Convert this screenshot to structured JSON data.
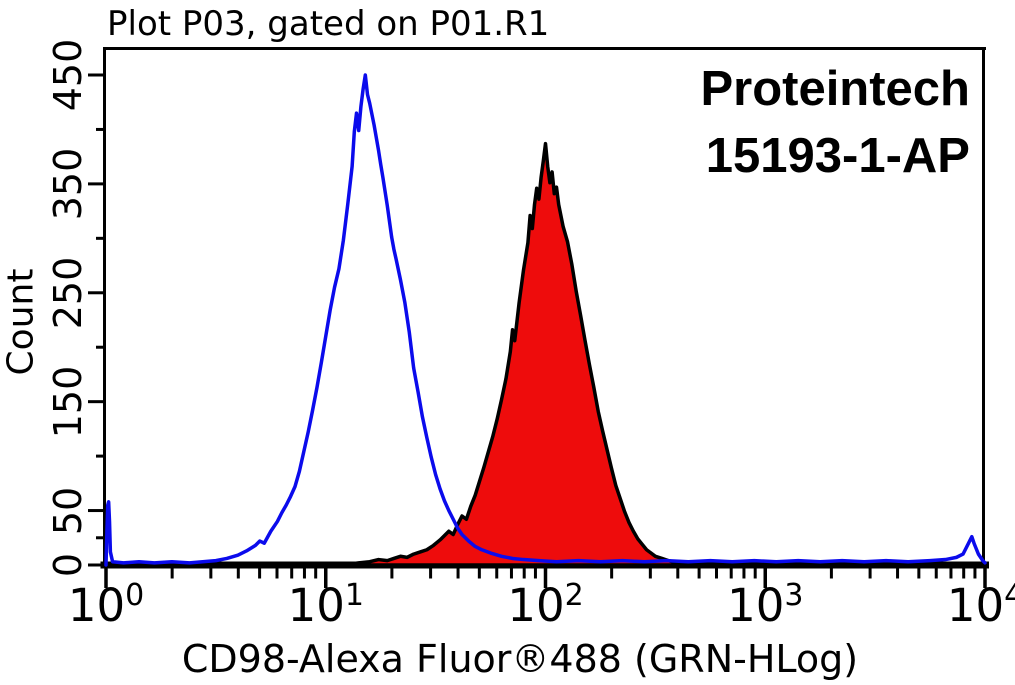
{
  "plot": {
    "title": "Plot P03, gated on P01.R1",
    "watermark_line1": "Proteintech",
    "watermark_line2": "15193-1-AP"
  },
  "colors": {
    "background": "#ffffff",
    "frame": "#000000",
    "text": "#000000",
    "control_line": "#0b0bec",
    "stained_fill": "#ee0c0c",
    "stained_outline": "#000000"
  },
  "chart_data": {
    "type": "area",
    "subtype": "flow-cytometry-overlay-histogram",
    "title": "Plot P03, gated on P01.R1",
    "annotation": "Proteintech 15193-1-AP",
    "xlabel": "CD98-Alexa Fluor®488 (GRN-HLog)",
    "ylabel": "Count",
    "x_scale": "log10",
    "xlim": [
      1,
      10000
    ],
    "xlim_log": [
      0,
      4
    ],
    "ylim": [
      0,
      475
    ],
    "grid": false,
    "legend": "none",
    "x_ticks": [
      {
        "value": 1,
        "base": "10",
        "exp": "0"
      },
      {
        "value": 10,
        "base": "10",
        "exp": "1"
      },
      {
        "value": 100,
        "base": "10",
        "exp": "2"
      },
      {
        "value": 1000,
        "base": "10",
        "exp": "3"
      },
      {
        "value": 10000,
        "base": "10",
        "exp": "4"
      }
    ],
    "y_labeled_ticks": [
      0,
      50,
      150,
      250,
      350,
      450
    ],
    "y_minor_ticks": [
      25,
      100,
      200,
      300,
      400
    ],
    "series": [
      {
        "name": "stained CD98-Alexa Fluor 488 (red filled histogram)",
        "style": "filled",
        "fill": "#ee0c0c",
        "stroke": "#000000",
        "peak_x": 100,
        "peak_count": 387,
        "points_logx_count": [
          [
            1.08,
            0
          ],
          [
            1.15,
            2
          ],
          [
            1.2,
            3
          ],
          [
            1.24,
            5
          ],
          [
            1.28,
            4
          ],
          [
            1.31,
            6
          ],
          [
            1.34,
            8
          ],
          [
            1.37,
            7
          ],
          [
            1.4,
            10
          ],
          [
            1.43,
            12
          ],
          [
            1.46,
            14
          ],
          [
            1.49,
            18
          ],
          [
            1.52,
            23
          ],
          [
            1.54,
            27
          ],
          [
            1.56,
            31
          ],
          [
            1.58,
            28
          ],
          [
            1.6,
            37
          ],
          [
            1.62,
            45
          ],
          [
            1.64,
            42
          ],
          [
            1.66,
            54
          ],
          [
            1.68,
            64
          ],
          [
            1.7,
            77
          ],
          [
            1.72,
            90
          ],
          [
            1.74,
            104
          ],
          [
            1.76,
            118
          ],
          [
            1.78,
            134
          ],
          [
            1.8,
            152
          ],
          [
            1.82,
            171
          ],
          [
            1.84,
            196
          ],
          [
            1.85,
            216
          ],
          [
            1.86,
            206
          ],
          [
            1.88,
            241
          ],
          [
            1.9,
            271
          ],
          [
            1.92,
            296
          ],
          [
            1.93,
            321
          ],
          [
            1.94,
            309
          ],
          [
            1.95,
            331
          ],
          [
            1.96,
            346
          ],
          [
            1.97,
            336
          ],
          [
            1.98,
            356
          ],
          [
            1.99,
            371
          ],
          [
            2.0,
            387
          ],
          [
            2.01,
            366
          ],
          [
            2.02,
            351
          ],
          [
            2.03,
            361
          ],
          [
            2.04,
            341
          ],
          [
            2.05,
            347
          ],
          [
            2.06,
            331
          ],
          [
            2.08,
            311
          ],
          [
            2.1,
            297
          ],
          [
            2.12,
            276
          ],
          [
            2.14,
            251
          ],
          [
            2.16,
            229
          ],
          [
            2.18,
            206
          ],
          [
            2.2,
            184
          ],
          [
            2.22,
            163
          ],
          [
            2.24,
            141
          ],
          [
            2.26,
            123
          ],
          [
            2.28,
            106
          ],
          [
            2.3,
            89
          ],
          [
            2.32,
            73
          ],
          [
            2.34,
            61
          ],
          [
            2.36,
            49
          ],
          [
            2.38,
            39
          ],
          [
            2.4,
            31
          ],
          [
            2.42,
            24
          ],
          [
            2.44,
            19
          ],
          [
            2.46,
            14
          ],
          [
            2.48,
            11
          ],
          [
            2.5,
            8
          ],
          [
            2.53,
            6
          ],
          [
            2.56,
            4
          ],
          [
            2.6,
            2
          ],
          [
            2.66,
            1
          ],
          [
            2.72,
            0
          ]
        ]
      },
      {
        "name": "control (blue open histogram)",
        "style": "open",
        "fill": "none",
        "stroke": "#0b0bec",
        "peak_x": 15,
        "peak_count": 450,
        "points_logx_count": [
          [
            0.0,
            0
          ],
          [
            0.004,
            30
          ],
          [
            0.008,
            55
          ],
          [
            0.012,
            58
          ],
          [
            0.016,
            40
          ],
          [
            0.02,
            12
          ],
          [
            0.03,
            3
          ],
          [
            0.08,
            2
          ],
          [
            0.15,
            3
          ],
          [
            0.22,
            2
          ],
          [
            0.3,
            3
          ],
          [
            0.38,
            2
          ],
          [
            0.44,
            3
          ],
          [
            0.5,
            4
          ],
          [
            0.55,
            6
          ],
          [
            0.6,
            9
          ],
          [
            0.64,
            13
          ],
          [
            0.68,
            18
          ],
          [
            0.7,
            22
          ],
          [
            0.72,
            20
          ],
          [
            0.75,
            31
          ],
          [
            0.78,
            40
          ],
          [
            0.8,
            48
          ],
          [
            0.82,
            55
          ],
          [
            0.84,
            63
          ],
          [
            0.86,
            72
          ],
          [
            0.88,
            86
          ],
          [
            0.9,
            104
          ],
          [
            0.92,
            122
          ],
          [
            0.94,
            142
          ],
          [
            0.96,
            163
          ],
          [
            0.98,
            186
          ],
          [
            1.0,
            210
          ],
          [
            1.02,
            234
          ],
          [
            1.04,
            255
          ],
          [
            1.06,
            272
          ],
          [
            1.08,
            298
          ],
          [
            1.1,
            331
          ],
          [
            1.12,
            366
          ],
          [
            1.13,
            398
          ],
          [
            1.14,
            415
          ],
          [
            1.15,
            399
          ],
          [
            1.16,
            421
          ],
          [
            1.17,
            437
          ],
          [
            1.18,
            450
          ],
          [
            1.19,
            432
          ],
          [
            1.2,
            424
          ],
          [
            1.22,
            404
          ],
          [
            1.24,
            381
          ],
          [
            1.25,
            368
          ],
          [
            1.26,
            356
          ],
          [
            1.28,
            330
          ],
          [
            1.3,
            301
          ],
          [
            1.31,
            290
          ],
          [
            1.32,
            281
          ],
          [
            1.34,
            262
          ],
          [
            1.36,
            241
          ],
          [
            1.38,
            214
          ],
          [
            1.4,
            181
          ],
          [
            1.42,
            159
          ],
          [
            1.44,
            136
          ],
          [
            1.46,
            117
          ],
          [
            1.48,
            99
          ],
          [
            1.5,
            83
          ],
          [
            1.52,
            70
          ],
          [
            1.54,
            59
          ],
          [
            1.56,
            50
          ],
          [
            1.58,
            42
          ],
          [
            1.6,
            34
          ],
          [
            1.62,
            28
          ],
          [
            1.65,
            22
          ],
          [
            1.68,
            17
          ],
          [
            1.71,
            14
          ],
          [
            1.75,
            11
          ],
          [
            1.8,
            8
          ],
          [
            1.85,
            6
          ],
          [
            1.9,
            5
          ],
          [
            1.97,
            4
          ],
          [
            2.05,
            3
          ],
          [
            2.15,
            4
          ],
          [
            2.25,
            3
          ],
          [
            2.35,
            4
          ],
          [
            2.45,
            3
          ],
          [
            2.55,
            4
          ],
          [
            2.65,
            3
          ],
          [
            2.75,
            4
          ],
          [
            2.85,
            3
          ],
          [
            2.95,
            4
          ],
          [
            3.05,
            3
          ],
          [
            3.15,
            4
          ],
          [
            3.25,
            3
          ],
          [
            3.35,
            4
          ],
          [
            3.45,
            3
          ],
          [
            3.55,
            4
          ],
          [
            3.65,
            3
          ],
          [
            3.75,
            4
          ],
          [
            3.82,
            5
          ],
          [
            3.87,
            7
          ],
          [
            3.9,
            10
          ],
          [
            3.93,
            22
          ],
          [
            3.94,
            26
          ],
          [
            3.95,
            20
          ],
          [
            3.97,
            10
          ],
          [
            3.99,
            4
          ],
          [
            4.0,
            2
          ]
        ]
      }
    ]
  }
}
